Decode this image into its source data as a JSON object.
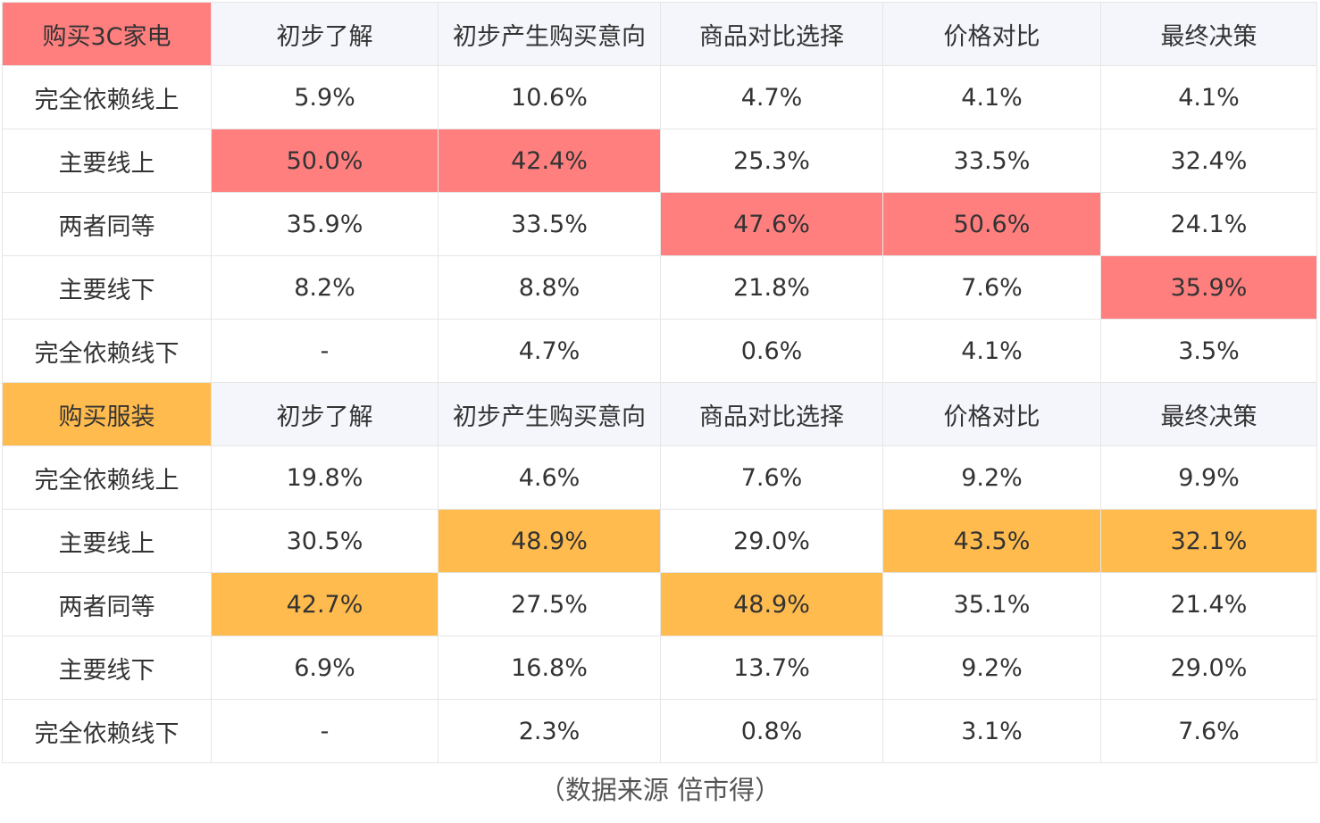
{
  "chart_data": {
    "type": "table",
    "sections": [
      {
        "title": "购买3C家电",
        "accent_color": "#ff7f7f",
        "columns": [
          "初步了解",
          "初步产生购买意向",
          "商品对比选择",
          "价格对比",
          "最终决策"
        ],
        "rows": [
          {
            "label": "完全依赖线上",
            "values": [
              "5.9%",
              "10.6%",
              "4.7%",
              "4.1%",
              "4.1%"
            ]
          },
          {
            "label": "主要线上",
            "values": [
              "50.0%",
              "42.4%",
              "25.3%",
              "33.5%",
              "32.4%"
            ]
          },
          {
            "label": "两者同等",
            "values": [
              "35.9%",
              "33.5%",
              "47.6%",
              "50.6%",
              "24.1%"
            ]
          },
          {
            "label": "主要线下",
            "values": [
              "8.2%",
              "8.8%",
              "21.8%",
              "7.6%",
              "35.9%"
            ]
          },
          {
            "label": "完全依赖线下",
            "values": [
              "-",
              "4.7%",
              "0.6%",
              "4.1%",
              "3.5%"
            ]
          }
        ],
        "highlights": [
          [
            1,
            0
          ],
          [
            1,
            1
          ],
          [
            2,
            2
          ],
          [
            2,
            3
          ],
          [
            3,
            4
          ]
        ]
      },
      {
        "title": "购买服装",
        "accent_color": "#ffbb4d",
        "columns": [
          "初步了解",
          "初步产生购买意向",
          "商品对比选择",
          "价格对比",
          "最终决策"
        ],
        "rows": [
          {
            "label": "完全依赖线上",
            "values": [
              "19.8%",
              "4.6%",
              "7.6%",
              "9.2%",
              "9.9%"
            ]
          },
          {
            "label": "主要线上",
            "values": [
              "30.5%",
              "48.9%",
              "29.0%",
              "43.5%",
              "32.1%"
            ]
          },
          {
            "label": "两者同等",
            "values": [
              "42.7%",
              "27.5%",
              "48.9%",
              "35.1%",
              "21.4%"
            ]
          },
          {
            "label": "主要线下",
            "values": [
              "6.9%",
              "16.8%",
              "13.7%",
              "9.2%",
              "29.0%"
            ]
          },
          {
            "label": "完全依赖线下",
            "values": [
              "-",
              "2.3%",
              "0.8%",
              "3.1%",
              "7.6%"
            ]
          }
        ],
        "highlights": [
          [
            2,
            0
          ],
          [
            1,
            1
          ],
          [
            2,
            2
          ],
          [
            1,
            3
          ],
          [
            1,
            4
          ]
        ]
      }
    ]
  },
  "caption": "（数据来源  倍市得）"
}
